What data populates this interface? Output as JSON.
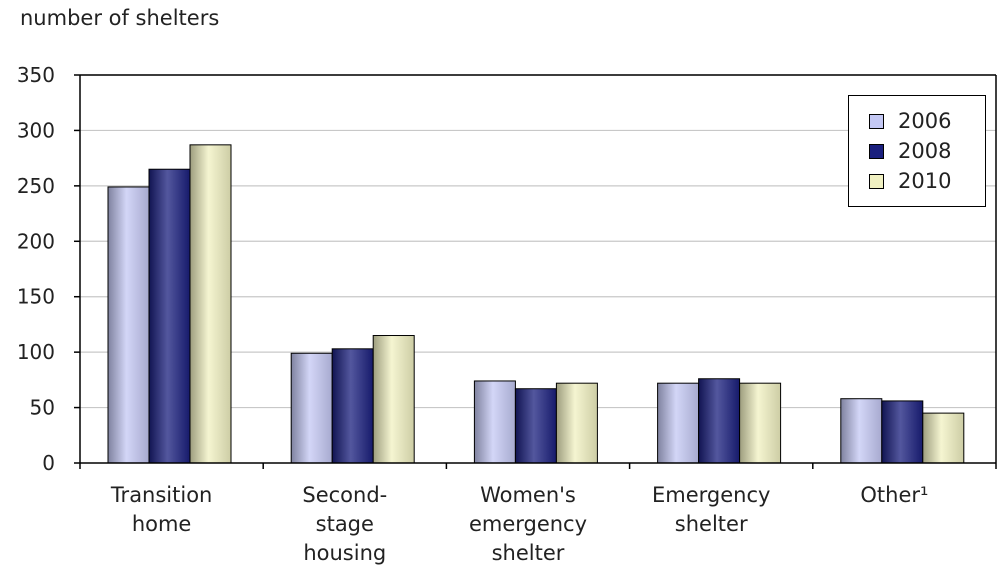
{
  "chart_data": {
    "type": "bar",
    "ylabel": "number of shelters",
    "ylim": [
      0,
      350
    ],
    "yticks": [
      0,
      50,
      100,
      150,
      200,
      250,
      300,
      350
    ],
    "grid": true,
    "legend_position": "top-right",
    "categories": [
      [
        "Transition",
        "home"
      ],
      [
        "Second-",
        "stage",
        "housing"
      ],
      [
        "Women's",
        "emergency",
        "shelter"
      ],
      [
        "Emergency",
        "shelter"
      ],
      [
        "Other¹"
      ]
    ],
    "series": [
      {
        "name": "2006",
        "color": "#c4c8f4",
        "values": [
          249,
          99,
          74,
          72,
          58
        ]
      },
      {
        "name": "2008",
        "color": "#1a1f7e",
        "values": [
          265,
          103,
          67,
          76,
          56
        ]
      },
      {
        "name": "2010",
        "color": "#f1f1c2",
        "values": [
          287,
          115,
          72,
          72,
          45
        ]
      }
    ]
  }
}
